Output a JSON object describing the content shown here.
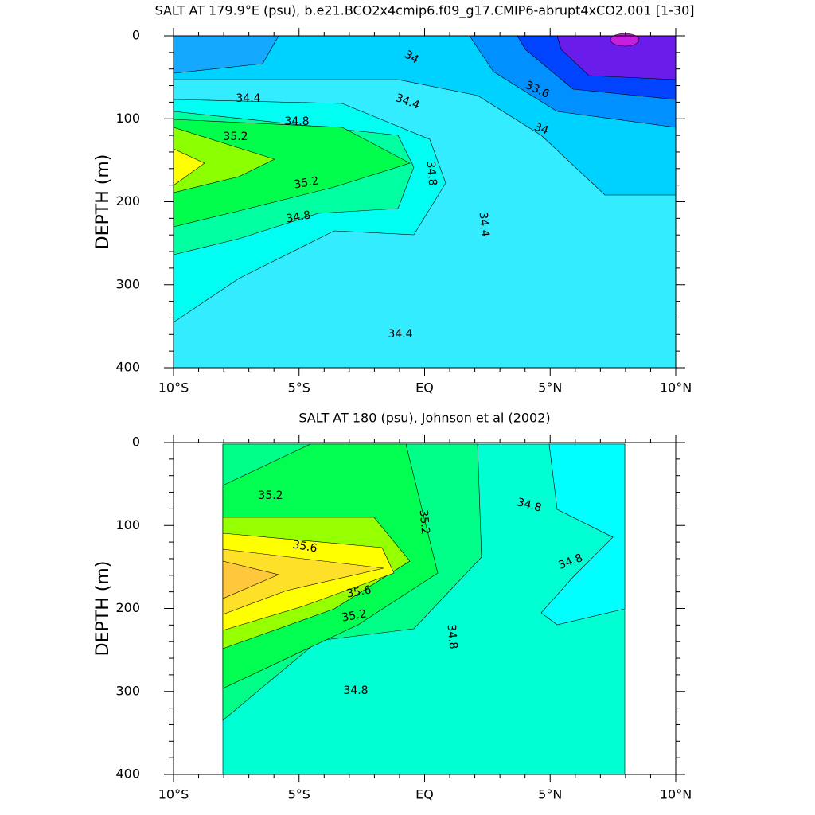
{
  "chart_data": [
    {
      "type": "contour",
      "title": "SALT AT 179.9°E (psu), b.e21.BCO2x4cmip6.f09_g17.CMIP6-abrupt4xCO2.001 [1-30]",
      "ylabel": "DEPTH (m)",
      "xlim": [
        -10,
        10
      ],
      "xticks": [
        {
          "value": -10,
          "label": "10°S"
        },
        {
          "value": -5,
          "label": "5°S"
        },
        {
          "value": 0,
          "label": "EQ"
        },
        {
          "value": 5,
          "label": "5°N"
        },
        {
          "value": 10,
          "label": "10°N"
        }
      ],
      "ylim": [
        0,
        400
      ],
      "yticks": [
        0,
        100,
        200,
        300,
        400
      ],
      "y_inverted": true,
      "contour_labels": [
        34,
        33.6,
        34,
        34.4,
        34.4,
        34.8,
        35.2,
        35.2,
        34.8,
        34.4,
        34.8,
        34.4
      ]
    },
    {
      "type": "contour",
      "title": "SALT AT 180 (psu), Johnson et al (2002)",
      "ylabel": "DEPTH (m)",
      "xlim": [
        -10,
        10
      ],
      "xticks": [
        {
          "value": -10,
          "label": "10°S"
        },
        {
          "value": -5,
          "label": "5°S"
        },
        {
          "value": 0,
          "label": "EQ"
        },
        {
          "value": 5,
          "label": "5°N"
        },
        {
          "value": 10,
          "label": "10°N"
        }
      ],
      "ylim": [
        0,
        400
      ],
      "yticks": [
        0,
        100,
        200,
        300,
        400
      ],
      "y_inverted": true,
      "contour_labels": [
        35.2,
        35.2,
        34.8,
        35.6,
        35.6,
        34.8,
        35.2,
        34.8,
        34.8
      ]
    }
  ]
}
